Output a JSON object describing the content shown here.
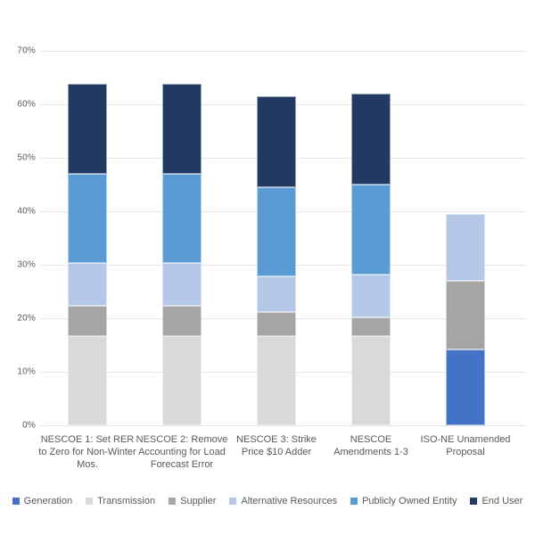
{
  "chart_data": {
    "type": "bar",
    "stacked": true,
    "title": "",
    "categories": [
      "NESCOE 1: Set RER to Zero for Non-Winter Mos.",
      "NESCOE 2: Remove Accounting for Load Forecast Error",
      "NESCOE 3: Strike Price $10 Adder",
      "NESCOE Amendments 1-3",
      "ISO-NE Unamended Proposal"
    ],
    "series": [
      {
        "name": "Generation",
        "color": "#4472C4",
        "values": [
          0,
          0,
          0,
          0,
          14.2
        ]
      },
      {
        "name": "Transmission",
        "color": "#D9D9D9",
        "values": [
          16.7,
          16.7,
          16.7,
          16.7,
          0
        ]
      },
      {
        "name": "Supplier",
        "color": "#A5A5A5",
        "values": [
          5.6,
          5.6,
          4.4,
          3.5,
          12.8
        ]
      },
      {
        "name": "Alternative Resources",
        "color": "#B4C7E7",
        "values": [
          8.0,
          8.0,
          6.7,
          8.0,
          12.5
        ]
      },
      {
        "name": "Publicly Owned Entity",
        "color": "#5B9BD5",
        "values": [
          16.7,
          16.7,
          16.7,
          16.8,
          0
        ]
      },
      {
        "name": "End User",
        "color": "#223A61",
        "values": [
          16.9,
          16.9,
          17.0,
          17.0,
          0
        ]
      }
    ],
    "totals_percent": [
      63.9,
      63.9,
      61.5,
      62.0,
      39.5
    ],
    "xlabel": "",
    "ylabel": "",
    "y_axis": {
      "min": 0,
      "max": 70,
      "step": 10,
      "tick_labels": [
        "0%",
        "10%",
        "20%",
        "30%",
        "40%",
        "50%",
        "60%",
        "70%"
      ]
    },
    "grid": true,
    "legend_position": "bottom",
    "legend_entries": [
      "Generation",
      "Transmission",
      "Supplier",
      "Alternative Resources",
      "Publicly Owned Entity",
      "End User"
    ]
  },
  "styles": {
    "background": "#FFFFFF",
    "grid_color": "#E7E7E7",
    "text_color": "#595959"
  }
}
